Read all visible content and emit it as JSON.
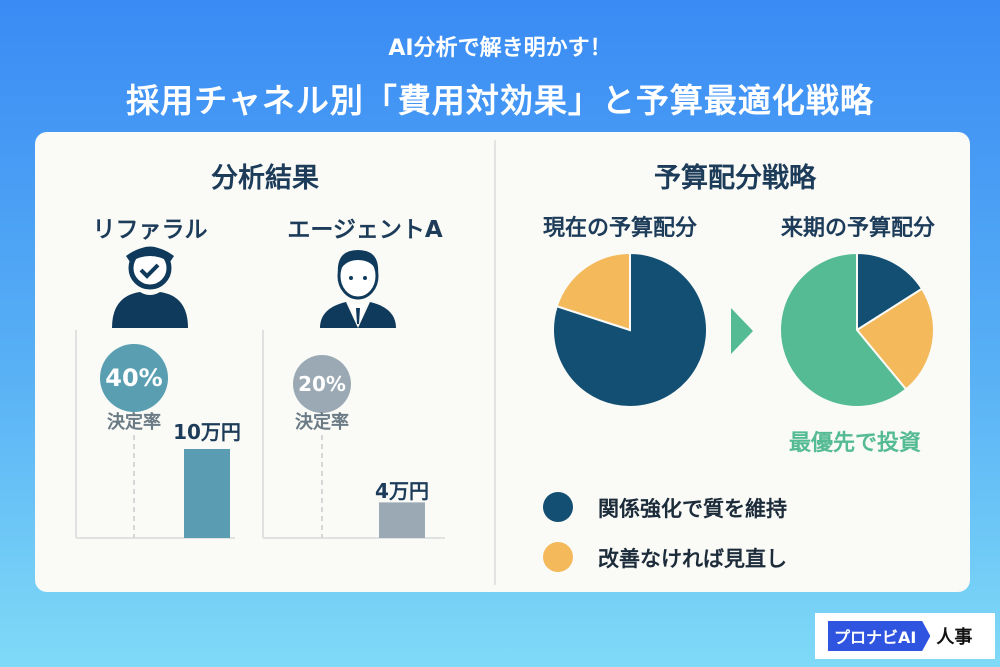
{
  "header": {
    "subtitle": "AI分析で解き明かす！",
    "title": "採用チャネル別「費用対効果」と予算最適化戦略"
  },
  "analysis": {
    "heading": "分析結果",
    "channels": [
      {
        "name": "リファラル",
        "icon": "person-check-icon",
        "rate": "40%",
        "rate_value": 40,
        "rate_label": "決定率",
        "cost": "10万円",
        "cost_value": 10,
        "color": "#5a9db3"
      },
      {
        "name": "エージェントA",
        "icon": "businessman-icon",
        "rate": "20%",
        "rate_value": 20,
        "rate_label": "決定率",
        "cost": "4万円",
        "cost_value": 4,
        "color": "#9aa9b3"
      }
    ]
  },
  "strategy": {
    "heading": "予算配分戦略",
    "current": {
      "label": "現在の予算配分",
      "slices": [
        {
          "color": "#124f73",
          "value": 80
        },
        {
          "color": "#f4b95a",
          "value": 20
        }
      ]
    },
    "next": {
      "label": "来期の予算配分",
      "slices": [
        {
          "color": "#124f73",
          "value": 16
        },
        {
          "color": "#f4b95a",
          "value": 23
        },
        {
          "color": "#55bb94",
          "value": 61
        }
      ],
      "highlight": "最優先で投資"
    },
    "legend": [
      {
        "color": "#124f73",
        "label": "関係強化で質を維持"
      },
      {
        "color": "#f4b95a",
        "label": "改善なければ見直し"
      }
    ]
  },
  "logo": {
    "brand": "プロナビAI",
    "suffix": "人事"
  }
}
